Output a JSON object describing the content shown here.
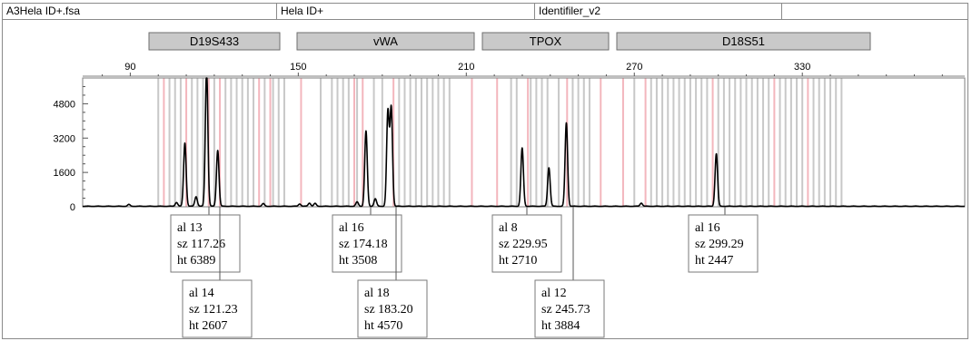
{
  "header": {
    "file_name": "A3Hela ID+.fsa",
    "sample_name": "Hela ID+",
    "panel_name": "Identifiler_v2",
    "extra": ""
  },
  "colors": {
    "trace": "#000000",
    "marker_fill": "#c9c9c9",
    "bin_gray": "#c8c8c8",
    "bin_pink": "#f3b6bd"
  },
  "chart_data": {
    "type": "line",
    "title": "",
    "xlabel": "",
    "ylabel": "",
    "xlim": [
      73,
      388
    ],
    "ylim": [
      0,
      6000
    ],
    "x_ticks": [
      "90",
      "150",
      "210",
      "270",
      "330"
    ],
    "y_ticks": [
      "0",
      "1600",
      "3200",
      "4800"
    ],
    "markers": [
      "D19S433",
      "vWA",
      "TPOX",
      "D18S51"
    ],
    "series": [
      {
        "peaks": [
          {
            "x": 89.5,
            "h": 80
          },
          {
            "x": 106.5,
            "h": 180
          },
          {
            "x": 109.5,
            "h": 2950
          },
          {
            "x": 113.5,
            "h": 450
          },
          {
            "x": 117.26,
            "h": 6389
          },
          {
            "x": 121.23,
            "h": 2607
          },
          {
            "x": 137.5,
            "h": 120
          },
          {
            "x": 150.5,
            "h": 110
          },
          {
            "x": 154.0,
            "h": 150
          },
          {
            "x": 156.0,
            "h": 130
          },
          {
            "x": 171.0,
            "h": 200
          },
          {
            "x": 174.18,
            "h": 3508
          },
          {
            "x": 177.5,
            "h": 350
          },
          {
            "x": 182.0,
            "h": 4400
          },
          {
            "x": 183.2,
            "h": 4570
          },
          {
            "x": 229.95,
            "h": 2710
          },
          {
            "x": 239.5,
            "h": 1800
          },
          {
            "x": 245.73,
            "h": 3884
          },
          {
            "x": 272.5,
            "h": 150
          },
          {
            "x": 299.29,
            "h": 2447
          }
        ]
      }
    ],
    "bins": {
      "gray": [
        100,
        104,
        106,
        108,
        112,
        114,
        116,
        120,
        124,
        126,
        128,
        130,
        132,
        134,
        138,
        141,
        143,
        145,
        158,
        162,
        164,
        166,
        168,
        171,
        177,
        180,
        186,
        188,
        190,
        192,
        194,
        196,
        198,
        200,
        202,
        204,
        226,
        228,
        233,
        235,
        237,
        239,
        243,
        248,
        250,
        252,
        254,
        270,
        276,
        278,
        280,
        282,
        284,
        286,
        288,
        290,
        292,
        294,
        296,
        300,
        302,
        304,
        306,
        308,
        310,
        312,
        314,
        316,
        318,
        322,
        324,
        326,
        328,
        330,
        334,
        336,
        338,
        340,
        342,
        344
      ],
      "pink": [
        102,
        110,
        118,
        122,
        136,
        140,
        151,
        170,
        173,
        184,
        212,
        221,
        232,
        246,
        258,
        266,
        274,
        298,
        320,
        332
      ]
    },
    "annotations": [
      {
        "allele": "al 13",
        "size": "sz 117.26",
        "height": "ht 6389"
      },
      {
        "allele": "al 14",
        "size": "sz 121.23",
        "height": "ht 2607"
      },
      {
        "allele": "al 16",
        "size": "sz 174.18",
        "height": "ht 3508"
      },
      {
        "allele": "al 18",
        "size": "sz 183.20",
        "height": "ht 4570"
      },
      {
        "allele": "al 8",
        "size": "sz 229.95",
        "height": "ht 2710"
      },
      {
        "allele": "al 12",
        "size": "sz 245.73",
        "height": "ht 3884"
      },
      {
        "allele": "al 16",
        "size": "sz 299.29",
        "height": "ht 2447"
      }
    ]
  }
}
